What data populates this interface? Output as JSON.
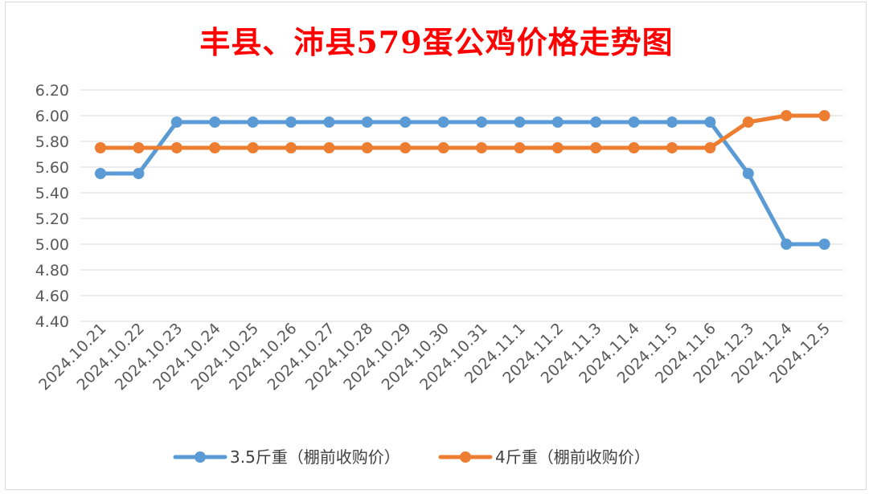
{
  "chart_data": {
    "type": "line",
    "title": "丰县、沛县579蛋公鸡价格走势图",
    "xlabel": "",
    "ylabel": "",
    "ylim": [
      4.4,
      6.2
    ],
    "ytick_step": 0.2,
    "ytick_labels": [
      "4.40",
      "4.60",
      "4.80",
      "5.00",
      "5.20",
      "5.40",
      "5.60",
      "5.80",
      "6.00",
      "6.20"
    ],
    "grid": true,
    "legend_position": "bottom",
    "categories": [
      "2024.10.21",
      "2024.10.22",
      "2024.10.23",
      "2024.10.24",
      "2024.10.25",
      "2024.10.26",
      "2024.10.27",
      "2024.10.28",
      "2024.10.29",
      "2024.10.30",
      "2024.10.31",
      "2024.11.1",
      "2024.11.2",
      "2024.11.3",
      "2024.11.4",
      "2024.11.5",
      "2024.11.6",
      "2024.12.3",
      "2024.12.4",
      "2024.12.5"
    ],
    "series": [
      {
        "name": "3.5斤重（棚前收购价）",
        "color": "#5b9bd5",
        "values": [
          5.55,
          5.55,
          5.95,
          5.95,
          5.95,
          5.95,
          5.95,
          5.95,
          5.95,
          5.95,
          5.95,
          5.95,
          5.95,
          5.95,
          5.95,
          5.95,
          5.95,
          5.55,
          5.0,
          5.0
        ]
      },
      {
        "name": "4斤重（棚前收购价）",
        "color": "#ed7d31",
        "values": [
          5.75,
          5.75,
          5.75,
          5.75,
          5.75,
          5.75,
          5.75,
          5.75,
          5.75,
          5.75,
          5.75,
          5.75,
          5.75,
          5.75,
          5.75,
          5.75,
          5.75,
          5.95,
          6.0,
          6.0
        ]
      }
    ]
  }
}
